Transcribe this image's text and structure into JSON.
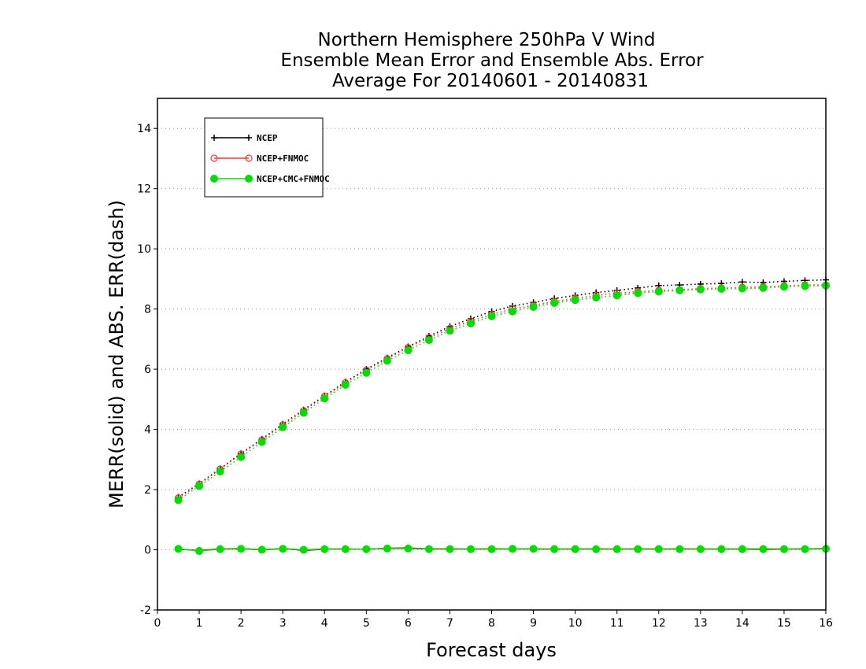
{
  "chart_data": {
    "type": "line",
    "title": [
      "Northern Hemisphere 250hPa V Wind",
      "Ensemble Mean Error and Ensemble Abs. Error",
      "Average For 20140601 - 20140831"
    ],
    "xlabel": "Forecast days",
    "ylabel": "MERR(solid) and ABS. ERR(dash)",
    "xlim": [
      0,
      16
    ],
    "ylim": [
      -2,
      15
    ],
    "xticks": [
      "0",
      "1",
      "2",
      "3",
      "4",
      "5",
      "6",
      "7",
      "8",
      "9",
      "10",
      "11",
      "12",
      "13",
      "14",
      "15",
      "16"
    ],
    "yticks": [
      "-2",
      "0",
      "2",
      "4",
      "6",
      "8",
      "10",
      "12",
      "14"
    ],
    "grid": "horizontal dotted",
    "legend_position": "top-left",
    "x": [
      0.5,
      1,
      1.5,
      2,
      2.5,
      3,
      3.5,
      4,
      4.5,
      5,
      5.5,
      6,
      6.5,
      7,
      7.5,
      8,
      8.5,
      9,
      9.5,
      10,
      10.5,
      11,
      11.5,
      12,
      12.5,
      13,
      13.5,
      14,
      14.5,
      15,
      15.5,
      16
    ],
    "series": [
      {
        "name": "NCEP",
        "color": "#000000",
        "marker": "plus",
        "abs_err": [
          1.75,
          2.2,
          2.7,
          3.2,
          3.68,
          4.18,
          4.65,
          5.12,
          5.58,
          6.0,
          6.38,
          6.75,
          7.1,
          7.42,
          7.68,
          7.92,
          8.1,
          8.22,
          8.35,
          8.45,
          8.55,
          8.62,
          8.7,
          8.78,
          8.8,
          8.83,
          8.85,
          8.9,
          8.88,
          8.92,
          8.95,
          8.97
        ],
        "mean_err": [
          0.02,
          -0.02,
          0.03,
          0.04,
          0.0,
          0.04,
          -0.02,
          0.02,
          0.02,
          0.02,
          0.05,
          0.06,
          0.03,
          0.03,
          0.02,
          0.03,
          0.03,
          0.03,
          0.02,
          0.02,
          0.03,
          0.02,
          0.03,
          0.02,
          0.03,
          0.02,
          0.02,
          0.02,
          0.01,
          0.02,
          0.03,
          0.04
        ]
      },
      {
        "name": "NCEP+FNMOC",
        "color": "#ff3333",
        "marker": "open-circle",
        "abs_err": [
          1.72,
          2.18,
          2.68,
          3.18,
          3.65,
          4.15,
          4.62,
          5.1,
          5.55,
          5.97,
          6.35,
          6.72,
          7.05,
          7.35,
          7.6,
          7.82,
          8.0,
          8.12,
          8.25,
          8.35,
          8.45,
          8.52,
          8.58,
          8.62,
          8.64,
          8.68,
          8.7,
          8.72,
          8.74,
          8.77,
          8.8,
          8.8
        ],
        "mean_err": [
          0.03,
          -0.03,
          0.03,
          0.04,
          0.01,
          0.04,
          0.0,
          0.03,
          0.03,
          0.02,
          0.05,
          0.05,
          0.03,
          0.03,
          0.03,
          0.03,
          0.03,
          0.03,
          0.03,
          0.03,
          0.03,
          0.03,
          0.03,
          0.03,
          0.03,
          0.03,
          0.03,
          0.03,
          0.03,
          0.03,
          0.03,
          0.04
        ]
      },
      {
        "name": "NCEP+CMC+FNMOC",
        "color": "#00dd00",
        "marker": "filled-circle",
        "abs_err": [
          1.65,
          2.12,
          2.6,
          3.08,
          3.58,
          4.07,
          4.55,
          5.03,
          5.48,
          5.88,
          6.28,
          6.63,
          6.97,
          7.28,
          7.52,
          7.76,
          7.92,
          8.07,
          8.2,
          8.3,
          8.38,
          8.45,
          8.53,
          8.58,
          8.62,
          8.65,
          8.67,
          8.68,
          8.7,
          8.74,
          8.76,
          8.78
        ],
        "mean_err": [
          0.03,
          -0.04,
          0.02,
          0.03,
          0.0,
          0.03,
          0.0,
          0.02,
          0.02,
          0.02,
          0.04,
          0.04,
          0.02,
          0.02,
          0.02,
          0.02,
          0.03,
          0.03,
          0.02,
          0.02,
          0.02,
          0.02,
          0.02,
          0.02,
          0.02,
          0.02,
          0.02,
          0.02,
          0.02,
          0.02,
          0.02,
          0.03
        ]
      }
    ]
  }
}
